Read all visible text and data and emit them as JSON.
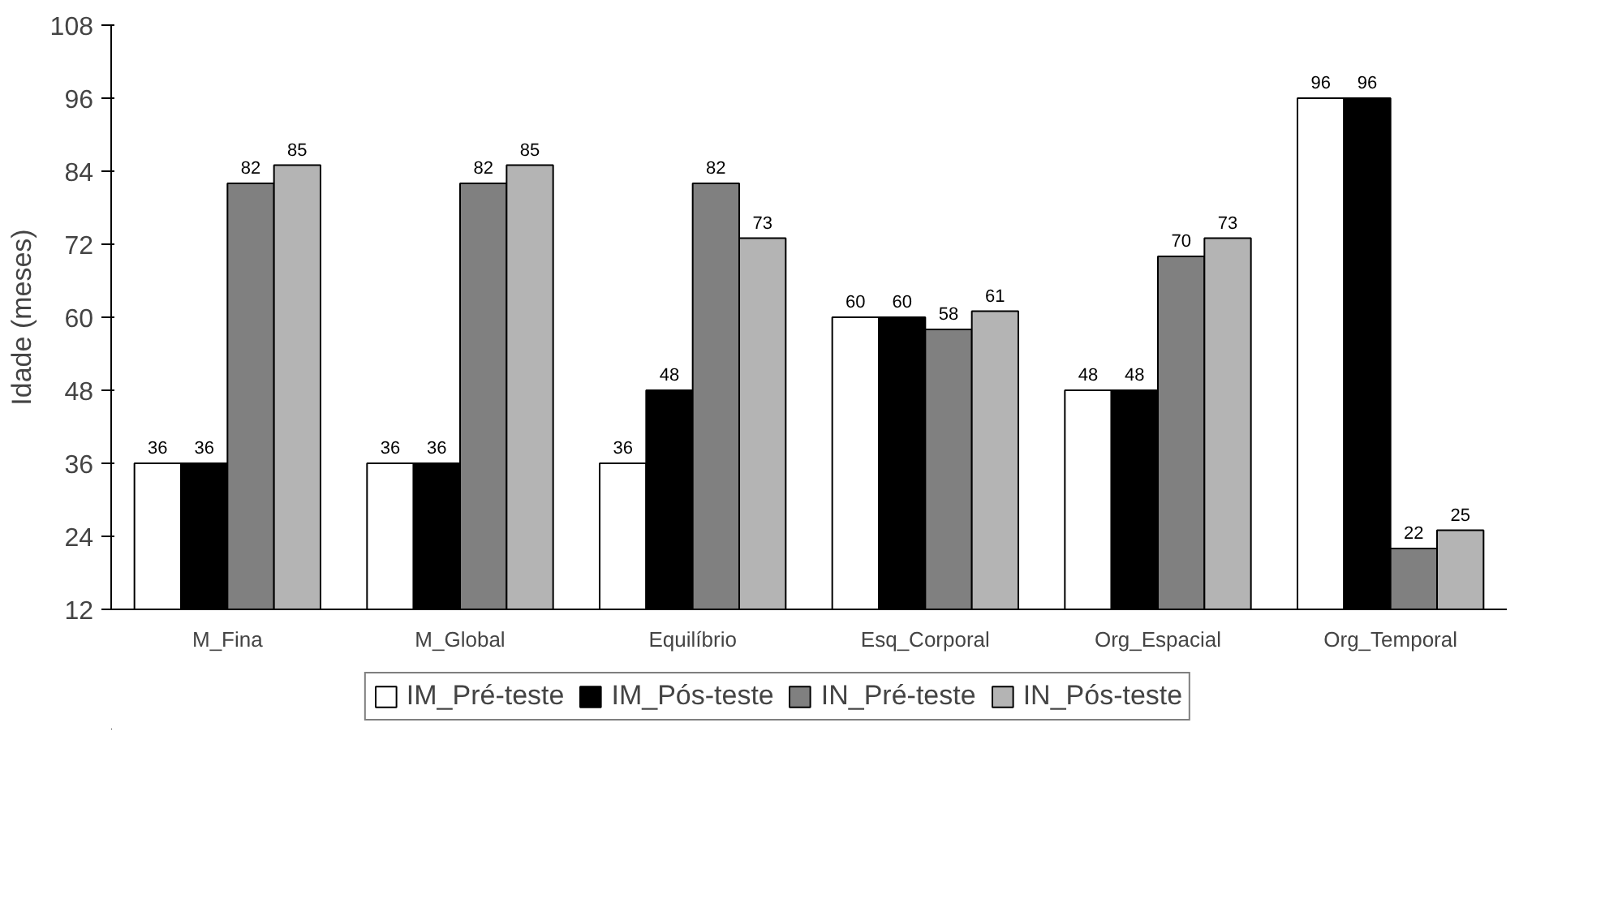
{
  "chart_data": {
    "type": "bar",
    "ylabel": "Idade (meses)",
    "categories": [
      "M_Fina",
      "M_Global",
      "Equilíbrio",
      "Esq_Corporal",
      "Org_Espacial",
      "Org_Temporal"
    ],
    "series": [
      {
        "name": "IM_Pré-teste",
        "color": "#ffffff",
        "values": [
          36,
          36,
          36,
          60,
          48,
          96
        ]
      },
      {
        "name": "IM_Pós-teste",
        "color": "#000000",
        "values": [
          36,
          36,
          48,
          60,
          48,
          96
        ]
      },
      {
        "name": "IN_Pré-teste",
        "color": "#808080",
        "values": [
          82,
          82,
          82,
          58,
          70,
          22
        ]
      },
      {
        "name": "IN_Pós-teste",
        "color": "#b4b4b4",
        "values": [
          85,
          85,
          73,
          61,
          73,
          25
        ]
      }
    ],
    "ylim": [
      12,
      108
    ],
    "yticks": [
      12,
      24,
      36,
      48,
      60,
      72,
      84,
      96,
      108
    ],
    "data_labels": true,
    "grid": false,
    "legend": "bottom"
  }
}
